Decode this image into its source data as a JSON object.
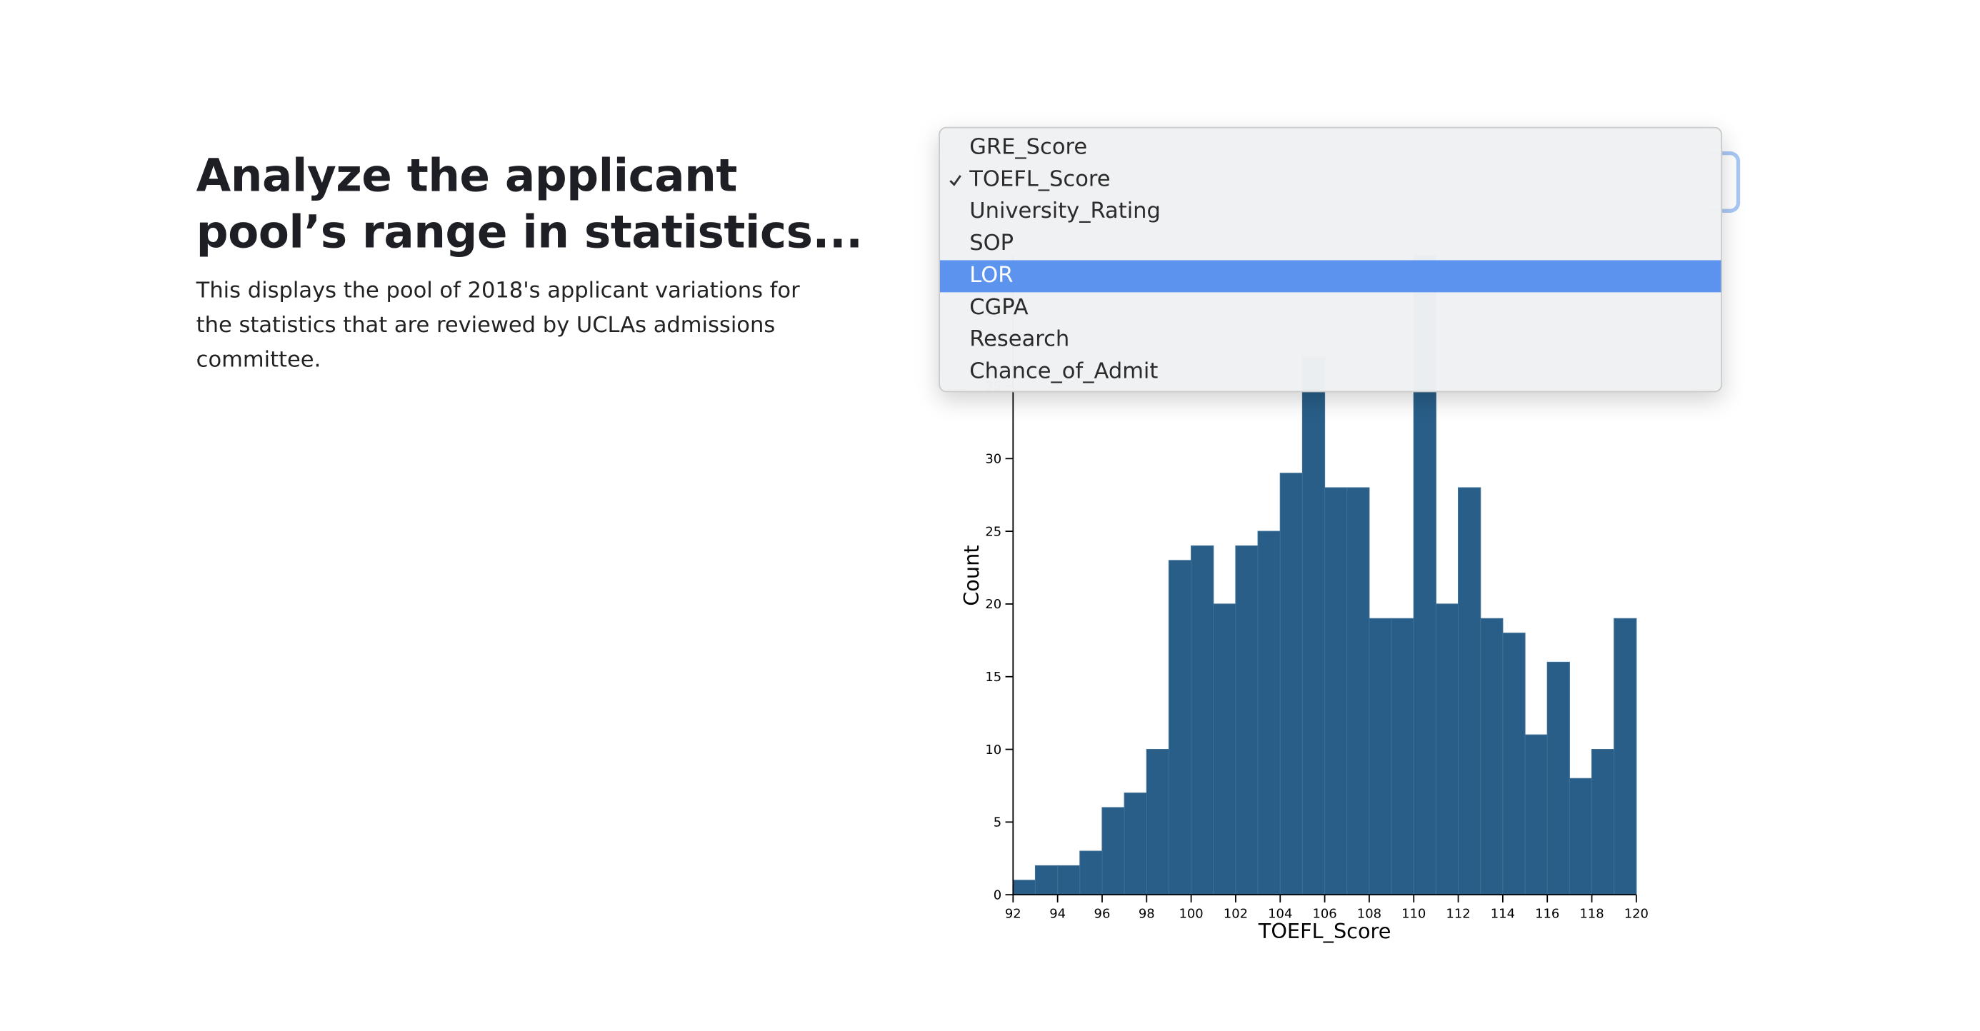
{
  "header": {
    "title": "Analyze the applicant pool’s range in statistics...",
    "description": "This displays the pool of 2018's applicant variations for the statistics that are reviewed by UCLAs admissions committee."
  },
  "dropdown": {
    "options": [
      "GRE_Score",
      "TOEFL_Score",
      "University_Rating",
      "SOP",
      "LOR",
      "CGPA",
      "Research",
      "Chance_of_Admit"
    ]
  },
  "chart_data": {
    "type": "histogram",
    "x_label": "TOEFL_Score",
    "y_label": "Count",
    "color": "#285e88",
    "bins": [
      92,
      93,
      94,
      95,
      96,
      97,
      98,
      99,
      100,
      101,
      102,
      103,
      104,
      105,
      106,
      107,
      108,
      109,
      110,
      111,
      112,
      113,
      114,
      115,
      116,
      117,
      118,
      119,
      120
    ],
    "values": [
      1,
      2,
      2,
      3,
      6,
      7,
      10,
      23,
      24,
      20,
      24,
      25,
      29,
      37,
      28,
      28,
      19,
      19,
      44,
      20,
      28,
      19,
      18,
      11,
      16,
      8,
      10,
      19
    ],
    "xlim": [
      92,
      120
    ],
    "xticks": [
      92,
      94,
      96,
      98,
      100,
      102,
      104,
      106,
      108,
      110,
      112,
      114,
      116,
      118,
      120
    ],
    "ylim": [
      0,
      44
    ],
    "yticks": [
      0,
      5,
      10,
      15,
      20,
      25,
      30,
      35,
      40
    ]
  }
}
